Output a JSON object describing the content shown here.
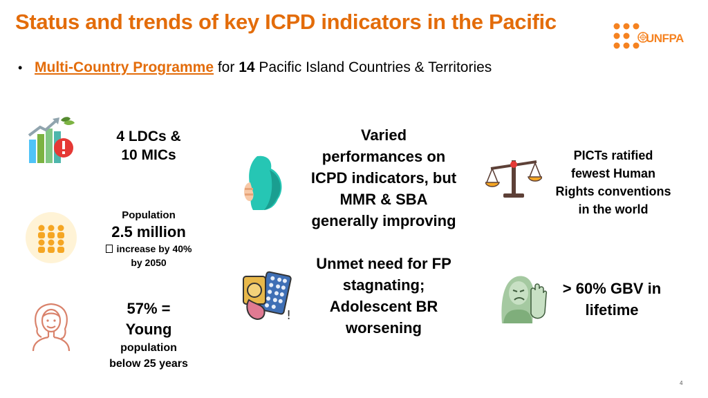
{
  "title": "Status and trends of key ICPD indicators in the Pacific",
  "logo": {
    "wordmark": "UNFPA",
    "color": "#F58220"
  },
  "bullet": {
    "link_text": "Multi-Country Programme",
    "text_1": " for ",
    "count": "14",
    "text_2": " Pacific Island Countries & Territories"
  },
  "left_col": {
    "ldc": {
      "line1": "4 LDCs &",
      "line2": "10 MICs"
    },
    "population": {
      "label": "Population",
      "value": "2.5 million",
      "note_icon": "missing-glyph-icon",
      "note_line1": "increase by 40%",
      "note_line2": "by 2050"
    },
    "young": {
      "line1": "57% =",
      "line2": "Young",
      "line3": "population",
      "line4": "below 25 years"
    }
  },
  "mid_col": {
    "performance": {
      "line1": "Varied",
      "line2": "performances on",
      "line3": "ICPD indicators, but",
      "line4": "MMR & SBA",
      "line5": "generally improving"
    },
    "unmet": {
      "line1": "Unmet need for FP",
      "line2": "stagnating;",
      "line3": "Adolescent BR",
      "line4": "worsening"
    }
  },
  "right_col": {
    "rights": {
      "line1": "PICTs ratified",
      "line2": "fewest Human",
      "line3": "Rights conventions",
      "line4": "in the world"
    },
    "gbv": {
      "line1": "> 60% GBV in",
      "line2": "lifetime"
    }
  },
  "page_number": "4",
  "colors": {
    "accent": "#E36C0A"
  }
}
